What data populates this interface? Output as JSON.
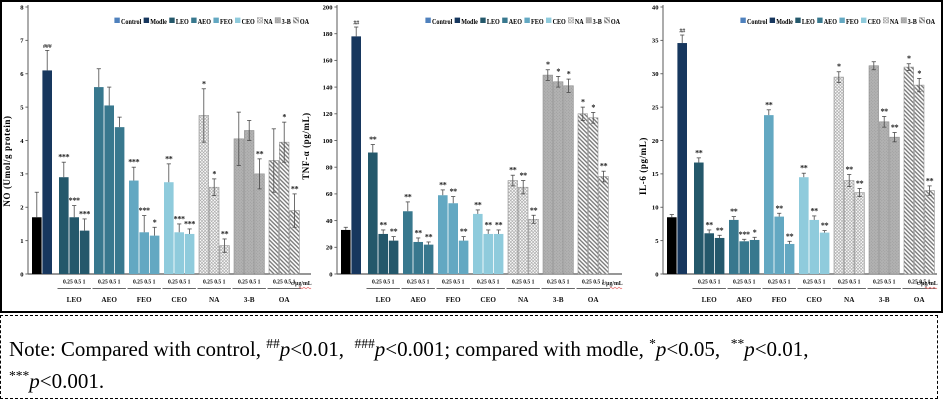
{
  "figure": {
    "x_concentrations": [
      "0.25",
      "0.5",
      "1"
    ],
    "x_axis_unit": "c/μg/mL",
    "group_names": [
      "LEO",
      "AEO",
      "FEO",
      "CEO",
      "NA",
      "3-B",
      "OA"
    ],
    "legend_items": [
      "Control",
      "Modle",
      "LEO",
      "AEO",
      "FEO",
      "CEO",
      "NA",
      "3-B",
      "OA"
    ],
    "series_styles": {
      "Control": {
        "bar": "#000000",
        "legend": "#4f81bd"
      },
      "Modle": {
        "bar": "#17375e",
        "legend": "#17375e"
      },
      "LEO": {
        "bar": "#24586b",
        "legend": "#24586b"
      },
      "AEO": {
        "bar": "#38788e",
        "legend": "#38788e"
      },
      "FEO": {
        "bar": "#63a8c2",
        "legend": "#63a8c2"
      },
      "CEO": {
        "bar": "#8fcbdc",
        "legend": "#8fcbdc"
      },
      "NA": {
        "pattern": "crosshatch"
      },
      "3-B": {
        "pattern": "dots"
      },
      "OA": {
        "pattern": "diagonal"
      }
    },
    "significance_colors": "#1a1a1a",
    "axis_color": "#595959"
  },
  "chart_data": [
    {
      "type": "bar",
      "ylabel": "NO（Umol/g protein）",
      "ylim": [
        0,
        8
      ],
      "ytick_step": 1,
      "groups": [
        {
          "name": "Control",
          "bars": [
            {
              "conc": "",
              "value": 1.7,
              "err": 0.75,
              "sig": ""
            }
          ]
        },
        {
          "name": "Modle",
          "bars": [
            {
              "conc": "",
              "value": 6.1,
              "err": 0.6,
              "sig": "###"
            }
          ]
        },
        {
          "name": "LEO",
          "bars": [
            {
              "conc": "0.25",
              "value": 2.9,
              "err": 0.45,
              "sig": "***"
            },
            {
              "conc": "0.5",
              "value": 1.7,
              "err": 0.35,
              "sig": "***"
            },
            {
              "conc": "1",
              "value": 1.3,
              "err": 0.35,
              "sig": "***"
            }
          ]
        },
        {
          "name": "AEO",
          "bars": [
            {
              "conc": "0.25",
              "value": 5.6,
              "err": 0.55,
              "sig": ""
            },
            {
              "conc": "0.5",
              "value": 5.05,
              "err": 0.55,
              "sig": ""
            },
            {
              "conc": "1",
              "value": 4.4,
              "err": 0.3,
              "sig": ""
            }
          ]
        },
        {
          "name": "FEO",
          "bars": [
            {
              "conc": "0.25",
              "value": 2.8,
              "err": 0.4,
              "sig": "***"
            },
            {
              "conc": "0.5",
              "value": 1.25,
              "err": 0.5,
              "sig": "***"
            },
            {
              "conc": "1",
              "value": 1.15,
              "err": 0.25,
              "sig": "*"
            }
          ]
        },
        {
          "name": "CEO",
          "bars": [
            {
              "conc": "0.25",
              "value": 2.75,
              "err": 0.55,
              "sig": "**"
            },
            {
              "conc": "0.5",
              "value": 1.25,
              "err": 0.25,
              "sig": "***"
            },
            {
              "conc": "1",
              "value": 1.2,
              "err": 0.15,
              "sig": "***"
            }
          ]
        },
        {
          "name": "NA",
          "bars": [
            {
              "conc": "0.25",
              "value": 4.75,
              "err": 0.8,
              "sig": "*"
            },
            {
              "conc": "0.5",
              "value": 2.6,
              "err": 0.25,
              "sig": "*"
            },
            {
              "conc": "1",
              "value": 0.85,
              "err": 0.2,
              "sig": "**"
            }
          ]
        },
        {
          "name": "3-B",
          "bars": [
            {
              "conc": "0.25",
              "value": 4.05,
              "err": 0.8,
              "sig": ""
            },
            {
              "conc": "0.5",
              "value": 4.3,
              "err": 0.3,
              "sig": ""
            },
            {
              "conc": "1",
              "value": 3.0,
              "err": 0.45,
              "sig": "**"
            }
          ]
        },
        {
          "name": "OA",
          "bars": [
            {
              "conc": "0.25",
              "value": 3.4,
              "err": 0.95,
              "sig": ""
            },
            {
              "conc": "0.5",
              "value": 3.95,
              "err": 0.6,
              "sig": "*"
            },
            {
              "conc": "1",
              "value": 1.9,
              "err": 0.5,
              "sig": "**"
            }
          ]
        }
      ]
    },
    {
      "type": "bar",
      "ylabel": "TNF-α（pg/mL）",
      "ylim": [
        0,
        200
      ],
      "ytick_step": 20,
      "groups": [
        {
          "name": "Control",
          "bars": [
            {
              "conc": "",
              "value": 33,
              "err": 2,
              "sig": ""
            }
          ]
        },
        {
          "name": "Modle",
          "bars": [
            {
              "conc": "",
              "value": 178,
              "err": 7,
              "sig": "##"
            }
          ]
        },
        {
          "name": "LEO",
          "bars": [
            {
              "conc": "0.25",
              "value": 91,
              "err": 6,
              "sig": "**"
            },
            {
              "conc": "0.5",
              "value": 30,
              "err": 3,
              "sig": "**"
            },
            {
              "conc": "1",
              "value": 25,
              "err": 3,
              "sig": "**"
            }
          ]
        },
        {
          "name": "AEO",
          "bars": [
            {
              "conc": "0.25",
              "value": 47,
              "err": 7,
              "sig": "**"
            },
            {
              "conc": "0.5",
              "value": 24,
              "err": 3,
              "sig": "**"
            },
            {
              "conc": "1",
              "value": 22,
              "err": 2,
              "sig": "**"
            }
          ]
        },
        {
          "name": "FEO",
          "bars": [
            {
              "conc": "0.25",
              "value": 59,
              "err": 4,
              "sig": "**"
            },
            {
              "conc": "0.5",
              "value": 53,
              "err": 5,
              "sig": "**"
            },
            {
              "conc": "1",
              "value": 25,
              "err": 3,
              "sig": "**"
            }
          ]
        },
        {
          "name": "CEO",
          "bars": [
            {
              "conc": "0.25",
              "value": 45,
              "err": 3,
              "sig": "**"
            },
            {
              "conc": "0.5",
              "value": 30,
              "err": 3,
              "sig": "**"
            },
            {
              "conc": "1",
              "value": 30,
              "err": 3,
              "sig": "**"
            }
          ]
        },
        {
          "name": "NA",
          "bars": [
            {
              "conc": "0.25",
              "value": 70,
              "err": 4,
              "sig": "**"
            },
            {
              "conc": "0.5",
              "value": 65,
              "err": 5,
              "sig": "**"
            },
            {
              "conc": "1",
              "value": 41,
              "err": 3,
              "sig": "**"
            }
          ]
        },
        {
          "name": "3-B",
          "bars": [
            {
              "conc": "0.25",
              "value": 149,
              "err": 4,
              "sig": "*"
            },
            {
              "conc": "0.5",
              "value": 144,
              "err": 4,
              "sig": "*"
            },
            {
              "conc": "1",
              "value": 141,
              "err": 5,
              "sig": "*"
            }
          ]
        },
        {
          "name": "OA",
          "bars": [
            {
              "conc": "0.25",
              "value": 120,
              "err": 5,
              "sig": "*"
            },
            {
              "conc": "0.5",
              "value": 117,
              "err": 4,
              "sig": "*"
            },
            {
              "conc": "1",
              "value": 73,
              "err": 4,
              "sig": "**"
            }
          ]
        }
      ]
    },
    {
      "type": "bar",
      "ylabel": "IL-6（pg/mL）",
      "ylim": [
        0,
        40
      ],
      "ytick_step": 5,
      "groups": [
        {
          "name": "Control",
          "bars": [
            {
              "conc": "",
              "value": 8.5,
              "err": 0.4,
              "sig": ""
            }
          ]
        },
        {
          "name": "Modle",
          "bars": [
            {
              "conc": "",
              "value": 34.6,
              "err": 1.2,
              "sig": "##"
            }
          ]
        },
        {
          "name": "LEO",
          "bars": [
            {
              "conc": "0.25",
              "value": 16.7,
              "err": 0.7,
              "sig": "**"
            },
            {
              "conc": "0.5",
              "value": 6.1,
              "err": 0.5,
              "sig": "**"
            },
            {
              "conc": "1",
              "value": 5.4,
              "err": 0.4,
              "sig": "**"
            }
          ]
        },
        {
          "name": "AEO",
          "bars": [
            {
              "conc": "0.25",
              "value": 8.1,
              "err": 0.5,
              "sig": "**"
            },
            {
              "conc": "0.5",
              "value": 4.9,
              "err": 0.3,
              "sig": "***"
            },
            {
              "conc": "1",
              "value": 5.1,
              "err": 0.4,
              "sig": "*"
            }
          ]
        },
        {
          "name": "FEO",
          "bars": [
            {
              "conc": "0.25",
              "value": 23.8,
              "err": 0.8,
              "sig": "**"
            },
            {
              "conc": "0.5",
              "value": 8.6,
              "err": 0.5,
              "sig": "**"
            },
            {
              "conc": "1",
              "value": 4.5,
              "err": 0.4,
              "sig": "**"
            }
          ]
        },
        {
          "name": "CEO",
          "bars": [
            {
              "conc": "0.25",
              "value": 14.5,
              "err": 0.6,
              "sig": "**"
            },
            {
              "conc": "0.5",
              "value": 8.1,
              "err": 0.6,
              "sig": "**"
            },
            {
              "conc": "1",
              "value": 6.2,
              "err": 0.3,
              "sig": "**"
            }
          ]
        },
        {
          "name": "NA",
          "bars": [
            {
              "conc": "0.25",
              "value": 29.5,
              "err": 0.8,
              "sig": "*"
            },
            {
              "conc": "0.5",
              "value": 14.0,
              "err": 0.9,
              "sig": "**"
            },
            {
              "conc": "1",
              "value": 12.2,
              "err": 0.6,
              "sig": "**"
            }
          ]
        },
        {
          "name": "3-B",
          "bars": [
            {
              "conc": "0.25",
              "value": 31.2,
              "err": 0.6,
              "sig": ""
            },
            {
              "conc": "0.5",
              "value": 22.8,
              "err": 0.8,
              "sig": "**"
            },
            {
              "conc": "1",
              "value": 20.5,
              "err": 0.7,
              "sig": "**"
            }
          ]
        },
        {
          "name": "OA",
          "bars": [
            {
              "conc": "0.25",
              "value": 31.0,
              "err": 0.5,
              "sig": "*"
            },
            {
              "conc": "0.5",
              "value": 28.3,
              "err": 1.0,
              "sig": "*"
            },
            {
              "conc": "1",
              "value": 12.5,
              "err": 0.7,
              "sig": "**"
            }
          ]
        }
      ]
    }
  ],
  "note": {
    "segments": [
      {
        "t": "Note: Compared with control, "
      },
      {
        "t": "##",
        "sup": true
      },
      {
        "t": "p",
        "i": true
      },
      {
        "t": "<0.01，"
      },
      {
        "t": "###",
        "sup": true
      },
      {
        "t": "p",
        "i": true
      },
      {
        "t": "<0.001; compared with modle, "
      },
      {
        "t": "*",
        "sup": true
      },
      {
        "t": "p",
        "i": true
      },
      {
        "t": "<0.05，"
      },
      {
        "t": "**",
        "sup": true
      },
      {
        "t": "p",
        "i": true
      },
      {
        "t": "<0.01，"
      },
      {
        "br": true
      },
      {
        "t": "***",
        "sup": true
      },
      {
        "t": "p",
        "i": true
      },
      {
        "t": "<0.001."
      }
    ]
  }
}
